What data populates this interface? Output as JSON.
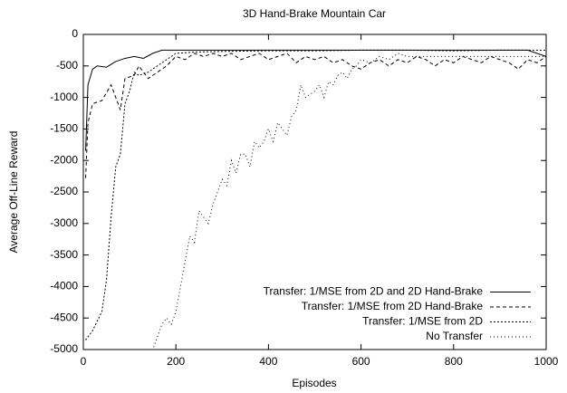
{
  "chart_data": {
    "type": "line",
    "title": "3D Hand-Brake Mountain Car",
    "xlabel": "Episodes",
    "ylabel": "Average Off-Line Reward",
    "xlim": [
      0,
      1000
    ],
    "xticks": [
      0,
      200,
      400,
      600,
      800,
      1000
    ],
    "ylim": [
      -5000,
      0
    ],
    "yticks": [
      0,
      -500,
      -1000,
      -1500,
      -2000,
      -2500,
      -3000,
      -3500,
      -4000,
      -4500,
      -5000
    ],
    "legend": "lower right",
    "series": [
      {
        "name": "Transfer: 1/MSE from 2D and 2D Hand-Brake",
        "color": "#000000",
        "x": [
          5,
          10,
          20,
          30,
          50,
          70,
          90,
          110,
          130,
          150,
          170,
          200,
          300,
          400,
          500,
          600,
          700,
          800,
          900,
          960,
          980,
          1000
        ],
        "values": [
          -1850,
          -800,
          -550,
          -500,
          -520,
          -430,
          -380,
          -350,
          -380,
          -300,
          -250,
          -250,
          -250,
          -250,
          -250,
          -250,
          -250,
          -250,
          -250,
          -250,
          -300,
          -350
        ]
      },
      {
        "name": "Transfer: 1/MSE from 2D Hand-Brake",
        "color": "#000000",
        "x": [
          5,
          10,
          20,
          40,
          60,
          70,
          80,
          90,
          110,
          120,
          140,
          160,
          180,
          200,
          220,
          240,
          260,
          280,
          300,
          320,
          340,
          360,
          380,
          400,
          420,
          440,
          460,
          480,
          500,
          520,
          540,
          560,
          580,
          600,
          620,
          640,
          660,
          680,
          700,
          720,
          740,
          760,
          780,
          800,
          820,
          840,
          860,
          880,
          900,
          920,
          940,
          960,
          980,
          1000
        ],
        "values": [
          -2280,
          -1400,
          -1100,
          -1050,
          -800,
          -1000,
          -1200,
          -700,
          -650,
          -500,
          -700,
          -600,
          -500,
          -350,
          -400,
          -300,
          -350,
          -300,
          -350,
          -300,
          -400,
          -350,
          -300,
          -400,
          -350,
          -300,
          -450,
          -350,
          -400,
          -350,
          -450,
          -400,
          -500,
          -550,
          -450,
          -400,
          -500,
          -400,
          -450,
          -350,
          -400,
          -500,
          -400,
          -450,
          -350,
          -400,
          -450,
          -350,
          -400,
          -450,
          -550,
          -400,
          -450,
          -350
        ]
      },
      {
        "name": "Transfer: 1/MSE from 2D",
        "color": "#000000",
        "x": [
          5,
          20,
          40,
          50,
          60,
          70,
          80,
          90,
          100,
          110,
          120,
          140,
          160,
          180,
          200,
          240,
          300,
          400,
          500,
          600,
          700,
          800,
          900,
          960,
          1000
        ],
        "values": [
          -4850,
          -4700,
          -4400,
          -3900,
          -2900,
          -2100,
          -1900,
          -1100,
          -900,
          -600,
          -650,
          -600,
          -500,
          -400,
          -300,
          -280,
          -270,
          -260,
          -260,
          -250,
          -250,
          -260,
          -250,
          -250,
          -250
        ]
      },
      {
        "name": "No Transfer",
        "color": "#000000",
        "x": [
          140,
          150,
          160,
          170,
          180,
          190,
          200,
          210,
          220,
          230,
          240,
          250,
          260,
          270,
          280,
          290,
          300,
          310,
          320,
          330,
          340,
          350,
          360,
          370,
          380,
          390,
          400,
          410,
          420,
          430,
          440,
          450,
          460,
          470,
          480,
          490,
          500,
          510,
          520,
          530,
          540,
          550,
          560,
          570,
          580,
          590,
          600,
          620,
          640,
          660,
          680,
          700,
          800,
          900,
          1000
        ],
        "values": [
          -5000,
          -5000,
          -4800,
          -4600,
          -4500,
          -4600,
          -4400,
          -4000,
          -3600,
          -3200,
          -3300,
          -2800,
          -2900,
          -3000,
          -2700,
          -2500,
          -2300,
          -2400,
          -2000,
          -2200,
          -1900,
          -1900,
          -2100,
          -1700,
          -1800,
          -1700,
          -1500,
          -1700,
          -1400,
          -1500,
          -1600,
          -1300,
          -1200,
          -800,
          -1000,
          -950,
          -900,
          -800,
          -1000,
          -750,
          -800,
          -650,
          -600,
          -700,
          -550,
          -500,
          -400,
          -450,
          -350,
          -400,
          -300,
          -350,
          -350,
          -350,
          -350
        ]
      }
    ]
  }
}
